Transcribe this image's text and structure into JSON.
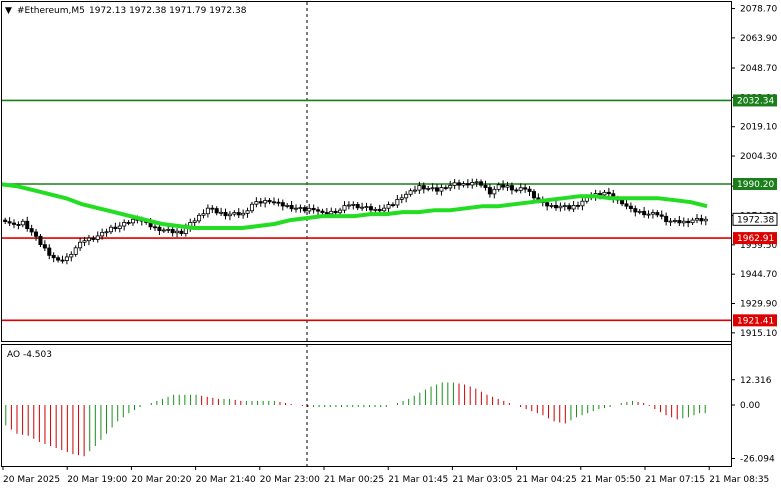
{
  "window": {
    "symbol_label": "#Ethereum,M5",
    "ohlc": "1972.13 1972.38 1971.79 1972.38"
  },
  "oscillator": {
    "label": "AO -4.503",
    "ticks": [
      "12.316",
      "0.00",
      "-26.094"
    ]
  },
  "price_axis_ticks": [
    "2078.70",
    "2063.90",
    "2048.70",
    "2033.90",
    "2019.10",
    "2004.30",
    "1989.10",
    "1974.30",
    "1959.50",
    "1944.70",
    "1929.90",
    "1915.10"
  ],
  "time_axis_ticks": [
    "20 Mar 2025",
    "20 Mar 19:00",
    "20 Mar 20:20",
    "20 Mar 21:40",
    "20 Mar 23:00",
    "21 Mar 00:25",
    "21 Mar 01:45",
    "21 Mar 03:05",
    "21 Mar 04:25",
    "21 Mar 05:50",
    "21 Mar 07:15",
    "21 Mar 08:35"
  ],
  "level_lines": [
    {
      "price": 2032.34,
      "label": "2032.34",
      "color": "#1a7f1a"
    },
    {
      "price": 1990.2,
      "label": "1990.20",
      "color": "#1a7f1a"
    },
    {
      "price": 1962.91,
      "label": "1962.91",
      "color": "#dd0000"
    },
    {
      "price": 1921.41,
      "label": "1921.41",
      "color": "#dd0000"
    }
  ],
  "current_price": {
    "price": 1972.38,
    "label": "1972.38"
  },
  "colors": {
    "ma_line": "#22dd22",
    "ao_up": "#1a8f1a",
    "ao_down": "#cc0000",
    "candle": "#000000"
  },
  "chart_data": {
    "type": "candlestick",
    "title": "#Ethereum,M5",
    "price_range": [
      1912,
      2081
    ],
    "close_path": [
      1972,
      1969,
      1971,
      1966,
      1960,
      1955,
      1951,
      1953,
      1958,
      1962,
      1963,
      1965,
      1968,
      1969,
      1971,
      1973,
      1970,
      1968,
      1967,
      1966,
      1966,
      1970,
      1974,
      1978,
      1976,
      1975,
      1975,
      1975,
      1980,
      1981,
      1982,
      1980,
      1979,
      1978,
      1977,
      1978,
      1975,
      1976,
      1977,
      1980,
      1979,
      1978,
      1977,
      1978,
      1980,
      1984,
      1986,
      1989,
      1988,
      1987,
      1989,
      1990,
      1990,
      1991,
      1990,
      1986,
      1989,
      1989,
      1987,
      1988,
      1984,
      1980,
      1979,
      1979,
      1978,
      1980,
      1983,
      1985,
      1986,
      1983,
      1981,
      1977,
      1976,
      1975,
      1975,
      1972,
      1971,
      1971,
      1972,
      1972
    ],
    "moving_average": [
      1990,
      1989,
      1987,
      1985,
      1983,
      1980,
      1978,
      1976,
      1974,
      1972,
      1970,
      1969,
      1968,
      1968,
      1968,
      1968,
      1969,
      1970,
      1972,
      1973,
      1974,
      1974,
      1974,
      1975,
      1975,
      1976,
      1976,
      1977,
      1977,
      1978,
      1979,
      1979,
      1980,
      1981,
      1982,
      1983,
      1984,
      1984,
      1983,
      1983,
      1983,
      1983,
      1982,
      1981,
      1979
    ],
    "ao_values": [
      -10,
      -14,
      -15,
      -18,
      -20,
      -22,
      -24,
      -25,
      -20,
      -14,
      -8,
      -4,
      -1,
      1,
      3,
      5,
      5,
      5,
      4,
      3,
      3,
      2,
      2,
      2,
      2,
      1,
      0,
      -1,
      -1,
      -1,
      -1,
      -1,
      -1,
      -1,
      -1,
      1,
      3,
      6,
      9,
      11,
      11,
      10,
      8,
      5,
      3,
      1,
      -1,
      -3,
      -5,
      -8,
      -9,
      -6,
      -4,
      -2,
      -1,
      1,
      2,
      1,
      -2,
      -5,
      -7,
      -6,
      -4
    ]
  }
}
